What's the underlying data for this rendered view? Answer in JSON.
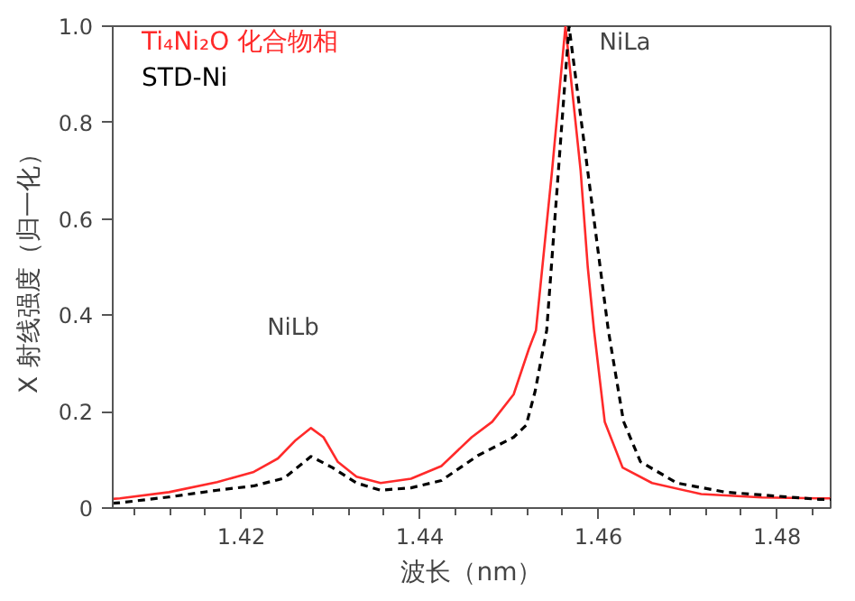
{
  "chart_data": {
    "type": "line",
    "xlabel": "波长（nm）",
    "ylabel": "X 射线强度（归一化）",
    "xlim": [
      1.4056,
      1.486
    ],
    "ylim": [
      0,
      1.0
    ],
    "xticks": [
      {
        "value": 1.408,
        "label": null
      },
      {
        "value": 1.412,
        "label": null
      },
      {
        "value": 1.416,
        "label": null
      },
      1.42,
      {
        "value": 1.424,
        "label": null
      },
      {
        "value": 1.428,
        "label": null
      },
      {
        "value": 1.432,
        "label": null
      },
      {
        "value": 1.436,
        "label": null
      },
      1.44,
      {
        "value": 1.444,
        "label": null
      },
      {
        "value": 1.448,
        "label": null
      },
      {
        "value": 1.452,
        "label": null
      },
      {
        "value": 1.456,
        "label": null
      },
      1.46,
      {
        "value": 1.464,
        "label": null
      },
      {
        "value": 1.468,
        "label": null
      },
      {
        "value": 1.472,
        "label": null
      },
      {
        "value": 1.476,
        "label": null
      },
      1.48,
      {
        "value": 1.484,
        "label": null
      }
    ],
    "yticks": [
      0,
      0.2,
      0.4,
      0.6,
      0.8,
      {
        "value": 1.0,
        "label": "1.0"
      }
    ],
    "grid": false,
    "legend": "top left",
    "marker": "none",
    "annotations": [
      "NiLb",
      "NiLa"
    ],
    "series": [
      {
        "name": "Ti₄Ni₂O 化合物相",
        "color": "#ff2a2a",
        "line_style": "solid",
        "x": [
          1.4056,
          1.4064,
          1.4119,
          1.4173,
          1.4214,
          1.4241,
          1.4261,
          1.4278,
          1.4292,
          1.4308,
          1.4329,
          1.4356,
          1.439,
          1.4424,
          1.4458,
          1.4481,
          1.4505,
          1.4522,
          1.453,
          1.4548,
          1.4563,
          1.458,
          1.4588,
          1.4595,
          1.4607,
          1.4627,
          1.466,
          1.4715,
          1.4783,
          1.4847,
          1.486
        ],
        "values": [
          0.019,
          0.02,
          0.033,
          0.054,
          0.075,
          0.103,
          0.141,
          0.166,
          0.147,
          0.096,
          0.065,
          0.052,
          0.061,
          0.087,
          0.147,
          0.179,
          0.236,
          0.33,
          0.369,
          0.7,
          1.0,
          0.7,
          0.5,
          0.369,
          0.179,
          0.084,
          0.052,
          0.029,
          0.022,
          0.02,
          0.02
        ]
      },
      {
        "name": "STD-Ni",
        "color": "#000000",
        "line_style": "dashed",
        "x": [
          1.4056,
          1.4064,
          1.4119,
          1.4173,
          1.4214,
          1.4248,
          1.4278,
          1.4302,
          1.4329,
          1.4356,
          1.439,
          1.4424,
          1.4465,
          1.4505,
          1.4519,
          1.4529,
          1.4542,
          1.4567,
          1.4611,
          1.4628,
          1.4647,
          1.4688,
          1.4742,
          1.4847,
          1.486
        ],
        "values": [
          0.01,
          0.011,
          0.023,
          0.037,
          0.046,
          0.062,
          0.107,
          0.084,
          0.052,
          0.037,
          0.042,
          0.057,
          0.109,
          0.147,
          0.172,
          0.242,
          0.369,
          1.0,
          0.369,
          0.18,
          0.096,
          0.052,
          0.033,
          0.018,
          0.018
        ]
      }
    ]
  }
}
